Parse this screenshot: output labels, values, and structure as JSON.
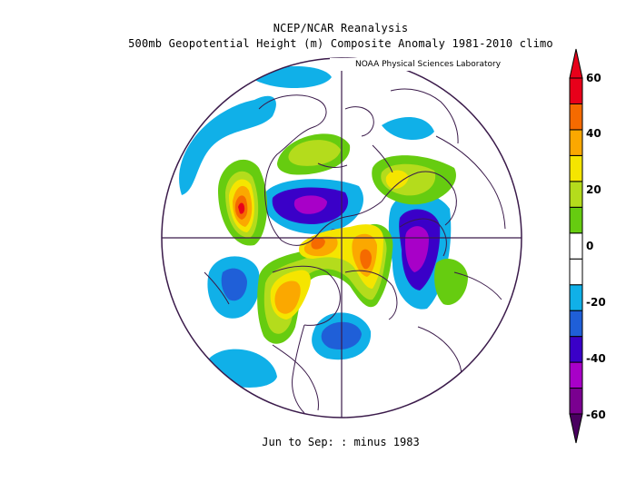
{
  "title": "NCEP/NCAR Reanalysis",
  "subtitle": "500mb Geopotential Height (m) Composite Anomaly 1981-2010 climo",
  "credit": "NOAA Physical Sciences Laboratory",
  "footer": "Jun to Sep: :  minus 1983",
  "colorbar": {
    "ticks": [
      "60",
      "40",
      "20",
      "0",
      "-20",
      "-40",
      "-60"
    ],
    "colors": [
      "#7a0090",
      "#a800c8",
      "#3a00c8",
      "#1f5fd8",
      "#10b0e8",
      "#ffffff",
      "#ffffff",
      "#66cc10",
      "#b4dc1c",
      "#f5e500",
      "#fba800",
      "#f56a00",
      "#e8001a"
    ],
    "units": "m"
  },
  "chart_data": {
    "type": "heatmap",
    "title": "NCEP/NCAR Reanalysis",
    "subtitle": "500mb Geopotential Height (m) Composite Anomaly 1981-2010 climo",
    "projection": "north polar stereographic",
    "range": [
      -60,
      60
    ],
    "interval": 10
  }
}
